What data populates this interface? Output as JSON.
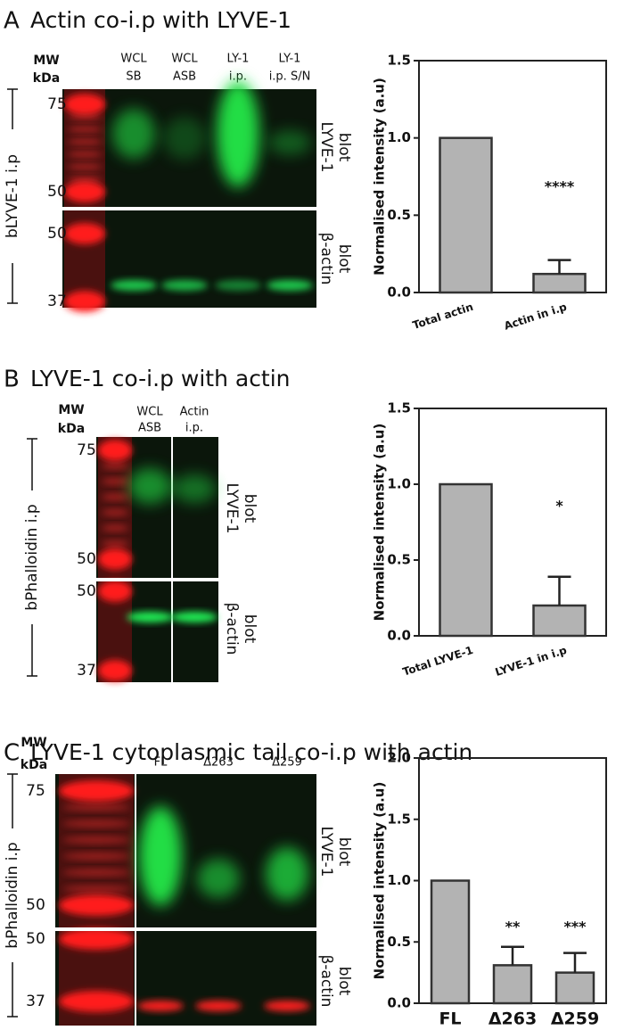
{
  "panels": [
    {
      "letter": "A",
      "title": "Actin co-i.p with LYVE-1",
      "mw": "MW",
      "kda": "kDa",
      "ip_label": "bLYVE-1 i.p",
      "markers": [
        75,
        50,
        50,
        37
      ],
      "lanes": [
        [
          "WCL",
          "SB"
        ],
        [
          "WCL",
          "ASB"
        ],
        [
          "LY-1",
          "i.p."
        ],
        [
          "LY-1",
          "i.p. S/N"
        ]
      ],
      "blots": [
        [
          "LYVE-1",
          "blot"
        ],
        [
          "β-actin",
          "blot"
        ]
      ]
    },
    {
      "letter": "B",
      "title": "LYVE-1 co-i.p with actin",
      "mw": "MW",
      "kda": "kDa",
      "ip_label": "bPhalloidin i.p",
      "markers": [
        75,
        50,
        50,
        37
      ],
      "lanes": [
        [
          "WCL",
          "ASB"
        ],
        [
          "Actin",
          "i.p."
        ]
      ],
      "blots": [
        [
          "LYVE-1",
          "blot"
        ],
        [
          "β-actin",
          "blot"
        ]
      ]
    },
    {
      "letter": "C",
      "title": "LYVE-1 cytoplasmic tail co-i.p with actin",
      "mw": "MW",
      "kda": "kDa",
      "ip_label": "bPhalloidin i.p",
      "markers": [
        75,
        50,
        50,
        37
      ],
      "lanes": [
        [
          "FL"
        ],
        [
          "Δ263"
        ],
        [
          "Δ259"
        ]
      ],
      "blots": [
        [
          "LYVE-1",
          "blot"
        ],
        [
          "β-actin",
          "blot"
        ]
      ]
    }
  ],
  "chart_data": [
    {
      "type": "bar",
      "ylabel": "Normalised intensity (a.u)",
      "categories": [
        "Total actin",
        "Actin in i.p"
      ],
      "values": [
        1.0,
        0.12
      ],
      "errors": [
        null,
        0.09
      ],
      "significance": [
        null,
        "****"
      ],
      "color": "#b3b3b3",
      "ylim": [
        0,
        1.5
      ],
      "yticks": [
        {
          "value": 0,
          "label": "0.0"
        },
        0.5,
        {
          "value": 1,
          "label": "1.0"
        },
        1.5
      ]
    },
    {
      "type": "bar",
      "ylabel": "Normalised intensity (a.u)",
      "categories": [
        "Total LYVE-1",
        "LYVE-1 in i.p"
      ],
      "values": [
        1.0,
        0.2
      ],
      "errors": [
        null,
        0.19
      ],
      "significance": [
        null,
        "*"
      ],
      "color": "#b3b3b3",
      "ylim": [
        0,
        1.5
      ],
      "yticks": [
        {
          "value": 0,
          "label": "0.0"
        },
        0.5,
        {
          "value": 1,
          "label": "1.0"
        },
        1.5
      ]
    },
    {
      "type": "bar",
      "ylabel": "Normalised intensity (a.u)",
      "categories": [
        "FL",
        "Δ263",
        "Δ259"
      ],
      "values": [
        1.0,
        0.31,
        0.25
      ],
      "errors": [
        null,
        0.15,
        0.16
      ],
      "significance": [
        null,
        "**",
        "***"
      ],
      "color": "#b3b3b3",
      "ylim": [
        0,
        2
      ],
      "yticks": [
        {
          "value": 0,
          "label": "0.0"
        },
        0.5,
        {
          "value": 1,
          "label": "1.0"
        },
        1.5,
        {
          "value": 2,
          "label": "2.0"
        }
      ]
    }
  ]
}
